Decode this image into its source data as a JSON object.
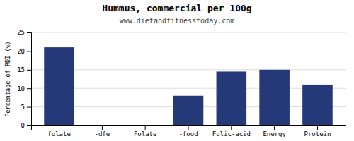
{
  "chart_data": {
    "type": "bar",
    "title": "Hummus, commercial per 100g",
    "subtitle": "www.dietandfitnesstoday.com",
    "categories": [
      "folate",
      "-dfe",
      "Folate",
      "-food",
      "Folic-acid",
      "Energy",
      "Protein"
    ],
    "values": [
      21.0,
      0.1,
      0.1,
      8.0,
      14.5,
      15.0,
      11.0
    ],
    "color": "#253878",
    "ylabel": "Percentage of RDI (%)",
    "ylim": [
      0,
      25
    ],
    "yticks": [
      0,
      5,
      10,
      15,
      20,
      25
    ],
    "grid": true
  }
}
